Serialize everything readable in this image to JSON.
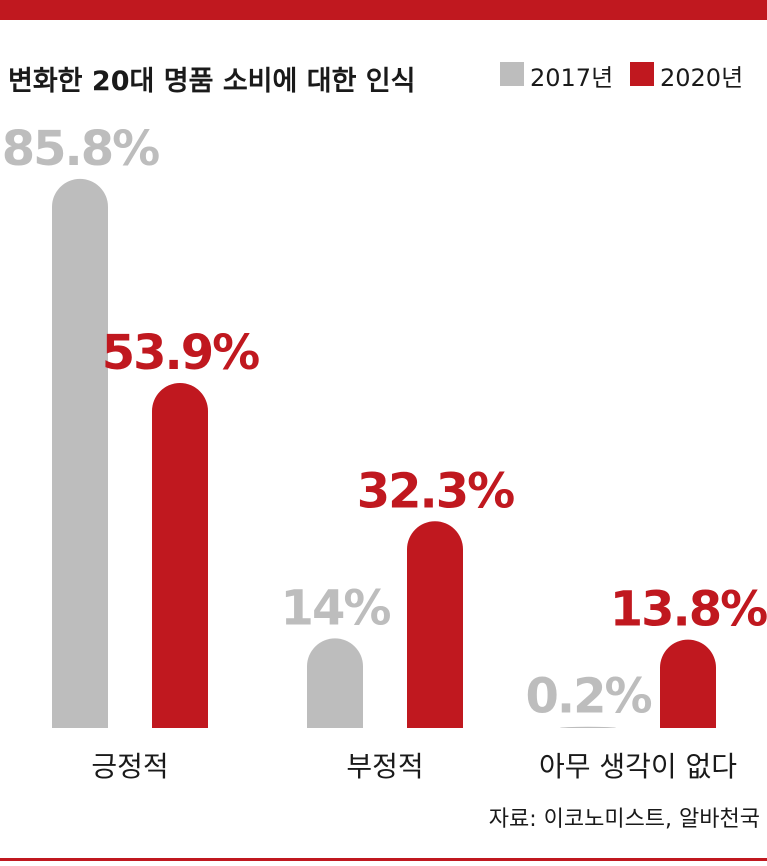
{
  "colors": {
    "accent": "#c0181f",
    "gray": "#bdbdbd",
    "text": "#1a1a1a"
  },
  "chart_data": {
    "type": "bar",
    "title": "변화한 20대 명품 소비에 대한 인식",
    "categories": [
      "긍정적",
      "부정적",
      "아무 생각이 없다"
    ],
    "series": [
      {
        "name": "2017년",
        "color": "#bdbdbd",
        "values": [
          85.8,
          14,
          0.2
        ],
        "labels": [
          "85.8%",
          "14%",
          "0.2%"
        ]
      },
      {
        "name": "2020년",
        "color": "#c0181f",
        "values": [
          53.9,
          32.3,
          13.8
        ],
        "labels": [
          "53.9%",
          "32.3%",
          "13.8%"
        ]
      }
    ],
    "ylim": [
      0,
      100
    ],
    "grid": false,
    "legend_position": "top-right"
  },
  "source": "자료: 이코노미스트, 알바천국"
}
